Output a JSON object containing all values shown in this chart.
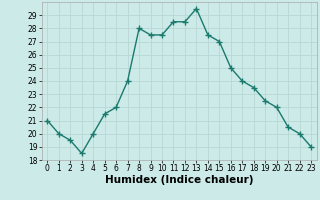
{
  "x": [
    0,
    1,
    2,
    3,
    4,
    5,
    6,
    7,
    8,
    9,
    10,
    11,
    12,
    13,
    14,
    15,
    16,
    17,
    18,
    19,
    20,
    21,
    22,
    23
  ],
  "y": [
    21,
    20,
    19.5,
    18.5,
    20,
    21.5,
    22,
    24,
    28,
    27.5,
    27.5,
    28.5,
    28.5,
    29.5,
    27.5,
    27,
    25,
    24,
    23.5,
    22.5,
    22,
    20.5,
    20,
    19
  ],
  "line_color": "#1a7a6e",
  "marker": "+",
  "marker_size": 4,
  "marker_linewidth": 1.0,
  "bg_color": "#cceae7",
  "grid_color": "#b8d8d5",
  "xlabel": "Humidex (Indice chaleur)",
  "ylim": [
    18,
    30
  ],
  "xlim": [
    -0.5,
    23.5
  ],
  "yticks": [
    18,
    19,
    20,
    21,
    22,
    23,
    24,
    25,
    26,
    27,
    28,
    29
  ],
  "xticks": [
    0,
    1,
    2,
    3,
    4,
    5,
    6,
    7,
    8,
    9,
    10,
    11,
    12,
    13,
    14,
    15,
    16,
    17,
    18,
    19,
    20,
    21,
    22,
    23
  ],
  "tick_fontsize": 5.5,
  "xlabel_fontsize": 7.5,
  "linewidth": 1.0
}
